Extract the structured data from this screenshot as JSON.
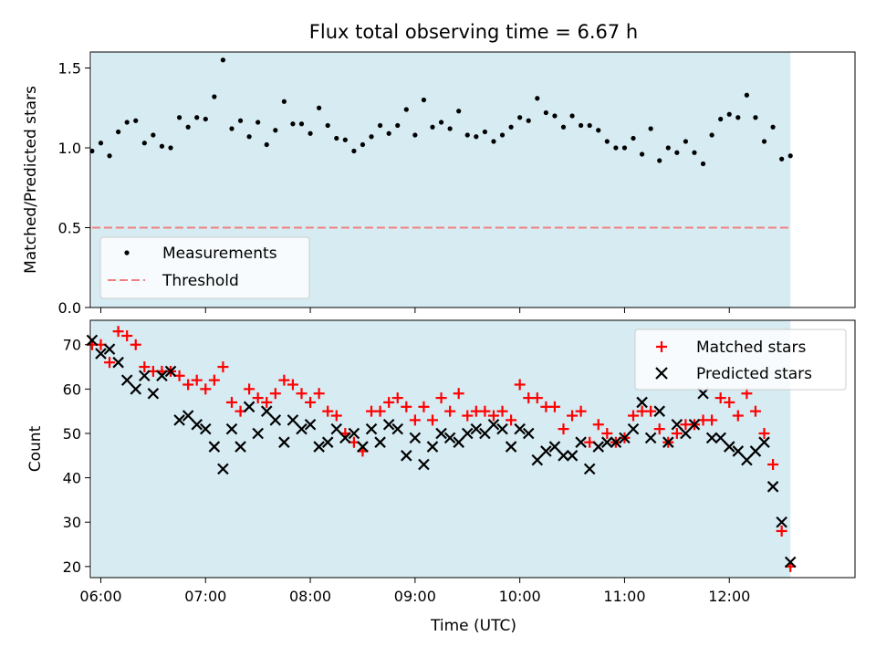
{
  "chart_data": [
    {
      "type": "scatter",
      "title": "Flux total observing time = 6.67 h",
      "xlabel": "",
      "ylabel": "Matched/Predicted stars",
      "xlim": [
        "05:54",
        "13:12"
      ],
      "ylim": [
        0,
        1.6
      ],
      "yticks": [
        0.0,
        0.5,
        1.0,
        1.5
      ],
      "ytick_labels": [
        "0.0",
        "0.5",
        "1.0",
        "1.5"
      ],
      "shaded_span": [
        "05:55",
        "12:35"
      ],
      "legend_position": "lower-left",
      "series": [
        {
          "name": "Measurements",
          "marker": "dot",
          "color": "#000000",
          "x": [
            "05:55",
            "06:00",
            "06:05",
            "06:10",
            "06:15",
            "06:20",
            "06:25",
            "06:30",
            "06:35",
            "06:40",
            "06:45",
            "06:50",
            "06:55",
            "07:00",
            "07:05",
            "07:10",
            "07:15",
            "07:20",
            "07:25",
            "07:30",
            "07:35",
            "07:40",
            "07:45",
            "07:50",
            "07:55",
            "08:00",
            "08:05",
            "08:10",
            "08:15",
            "08:20",
            "08:25",
            "08:30",
            "08:35",
            "08:40",
            "08:45",
            "08:50",
            "08:55",
            "09:00",
            "09:05",
            "09:10",
            "09:15",
            "09:20",
            "09:25",
            "09:30",
            "09:35",
            "09:40",
            "09:45",
            "09:50",
            "09:55",
            "10:00",
            "10:05",
            "10:10",
            "10:15",
            "10:20",
            "10:25",
            "10:30",
            "10:35",
            "10:40",
            "10:45",
            "10:50",
            "10:55",
            "11:00",
            "11:05",
            "11:10",
            "11:15",
            "11:20",
            "11:25",
            "11:30",
            "11:35",
            "11:40",
            "11:45",
            "11:50",
            "11:55",
            "12:00",
            "12:05",
            "12:10",
            "12:15",
            "12:20",
            "12:25",
            "12:30",
            "12:35"
          ],
          "y": [
            0.98,
            1.03,
            0.95,
            1.1,
            1.16,
            1.17,
            1.03,
            1.08,
            1.01,
            1.0,
            1.19,
            1.13,
            1.19,
            1.18,
            1.32,
            1.55,
            1.12,
            1.17,
            1.07,
            1.16,
            1.02,
            1.11,
            1.29,
            1.15,
            1.15,
            1.09,
            1.25,
            1.14,
            1.06,
            1.05,
            0.98,
            1.02,
            1.07,
            1.14,
            1.09,
            1.14,
            1.24,
            1.08,
            1.3,
            1.13,
            1.16,
            1.12,
            1.23,
            1.08,
            1.07,
            1.1,
            1.04,
            1.08,
            1.13,
            1.19,
            1.17,
            1.31,
            1.22,
            1.2,
            1.13,
            1.2,
            1.14,
            1.14,
            1.11,
            1.04,
            1.0,
            1.0,
            1.06,
            0.96,
            1.12,
            0.92,
            1.0,
            0.97,
            1.04,
            0.97,
            0.9,
            1.08,
            1.18,
            1.21,
            1.19,
            1.33,
            1.19,
            1.04,
            1.13,
            0.93,
            0.95
          ]
        },
        {
          "name": "Threshold",
          "marker": "dashed-line",
          "color": "#f08080",
          "x": [
            "05:55",
            "12:35"
          ],
          "y": [
            0.5,
            0.5
          ]
        }
      ]
    },
    {
      "type": "scatter",
      "title": "",
      "xlabel": "Time (UTC)",
      "ylabel": "Count",
      "xlim": [
        "05:54",
        "13:12"
      ],
      "ylim": [
        17.5,
        75.5
      ],
      "yticks": [
        20,
        30,
        40,
        50,
        60,
        70
      ],
      "xtick_labels": [
        "06:00",
        "07:00",
        "08:00",
        "09:00",
        "10:00",
        "11:00",
        "12:00"
      ],
      "shaded_span": [
        "05:55",
        "12:35"
      ],
      "legend_position": "top-right",
      "series": [
        {
          "name": "Matched stars",
          "marker": "plus",
          "color": "#ff0000",
          "x": [
            "05:55",
            "06:00",
            "06:05",
            "06:10",
            "06:15",
            "06:20",
            "06:25",
            "06:30",
            "06:35",
            "06:40",
            "06:45",
            "06:50",
            "06:55",
            "07:00",
            "07:05",
            "07:10",
            "07:15",
            "07:20",
            "07:25",
            "07:30",
            "07:35",
            "07:40",
            "07:45",
            "07:50",
            "07:55",
            "08:00",
            "08:05",
            "08:10",
            "08:15",
            "08:20",
            "08:25",
            "08:30",
            "08:35",
            "08:40",
            "08:45",
            "08:50",
            "08:55",
            "09:00",
            "09:05",
            "09:10",
            "09:15",
            "09:20",
            "09:25",
            "09:30",
            "09:35",
            "09:40",
            "09:45",
            "09:50",
            "09:55",
            "10:00",
            "10:05",
            "10:10",
            "10:15",
            "10:20",
            "10:25",
            "10:30",
            "10:35",
            "10:40",
            "10:45",
            "10:50",
            "10:55",
            "11:00",
            "11:05",
            "11:10",
            "11:15",
            "11:20",
            "11:25",
            "11:30",
            "11:35",
            "11:40",
            "11:45",
            "11:50",
            "11:55",
            "12:00",
            "12:05",
            "12:10",
            "12:15",
            "12:20",
            "12:25",
            "12:30",
            "12:35"
          ],
          "y": [
            70,
            70,
            66,
            73,
            72,
            70,
            65,
            64,
            64,
            64,
            63,
            61,
            62,
            60,
            62,
            65,
            57,
            55,
            60,
            58,
            57,
            59,
            62,
            61,
            59,
            57,
            59,
            55,
            54,
            50,
            48,
            46,
            55,
            55,
            57,
            58,
            56,
            53,
            56,
            53,
            58,
            55,
            59,
            54,
            55,
            55,
            54,
            55,
            53,
            61,
            58,
            58,
            56,
            56,
            51,
            54,
            55,
            48,
            52,
            50,
            48,
            49,
            54,
            55,
            55,
            51,
            48,
            50,
            52,
            52,
            53,
            53,
            58,
            57,
            54,
            59,
            55,
            50,
            43,
            28,
            20
          ]
        },
        {
          "name": "Predicted stars",
          "marker": "x",
          "color": "#000000",
          "x": [
            "05:55",
            "06:00",
            "06:05",
            "06:10",
            "06:15",
            "06:20",
            "06:25",
            "06:30",
            "06:35",
            "06:40",
            "06:45",
            "06:50",
            "06:55",
            "07:00",
            "07:05",
            "07:10",
            "07:15",
            "07:20",
            "07:25",
            "07:30",
            "07:35",
            "07:40",
            "07:45",
            "07:50",
            "07:55",
            "08:00",
            "08:05",
            "08:10",
            "08:15",
            "08:20",
            "08:25",
            "08:30",
            "08:35",
            "08:40",
            "08:45",
            "08:50",
            "08:55",
            "09:00",
            "09:05",
            "09:10",
            "09:15",
            "09:20",
            "09:25",
            "09:30",
            "09:35",
            "09:40",
            "09:45",
            "09:50",
            "09:55",
            "10:00",
            "10:05",
            "10:10",
            "10:15",
            "10:20",
            "10:25",
            "10:30",
            "10:35",
            "10:40",
            "10:45",
            "10:50",
            "10:55",
            "11:00",
            "11:05",
            "11:10",
            "11:15",
            "11:20",
            "11:25",
            "11:30",
            "11:35",
            "11:40",
            "11:45",
            "11:50",
            "11:55",
            "12:00",
            "12:05",
            "12:10",
            "12:15",
            "12:20",
            "12:25",
            "12:30",
            "12:35"
          ],
          "y": [
            71,
            68,
            69,
            66,
            62,
            60,
            63,
            59,
            63,
            64,
            53,
            54,
            52,
            51,
            47,
            42,
            51,
            47,
            56,
            50,
            55,
            53,
            48,
            53,
            51,
            52,
            47,
            48,
            51,
            49,
            50,
            47,
            51,
            48,
            52,
            51,
            45,
            49,
            43,
            47,
            50,
            49,
            48,
            50,
            51,
            50,
            52,
            51,
            47,
            51,
            50,
            44,
            46,
            47,
            45,
            45,
            48,
            42,
            47,
            48,
            48,
            49,
            51,
            57,
            49,
            55,
            48,
            52,
            50,
            52,
            59,
            49,
            49,
            47,
            46,
            44,
            46,
            48,
            38,
            30,
            21
          ]
        }
      ]
    }
  ]
}
